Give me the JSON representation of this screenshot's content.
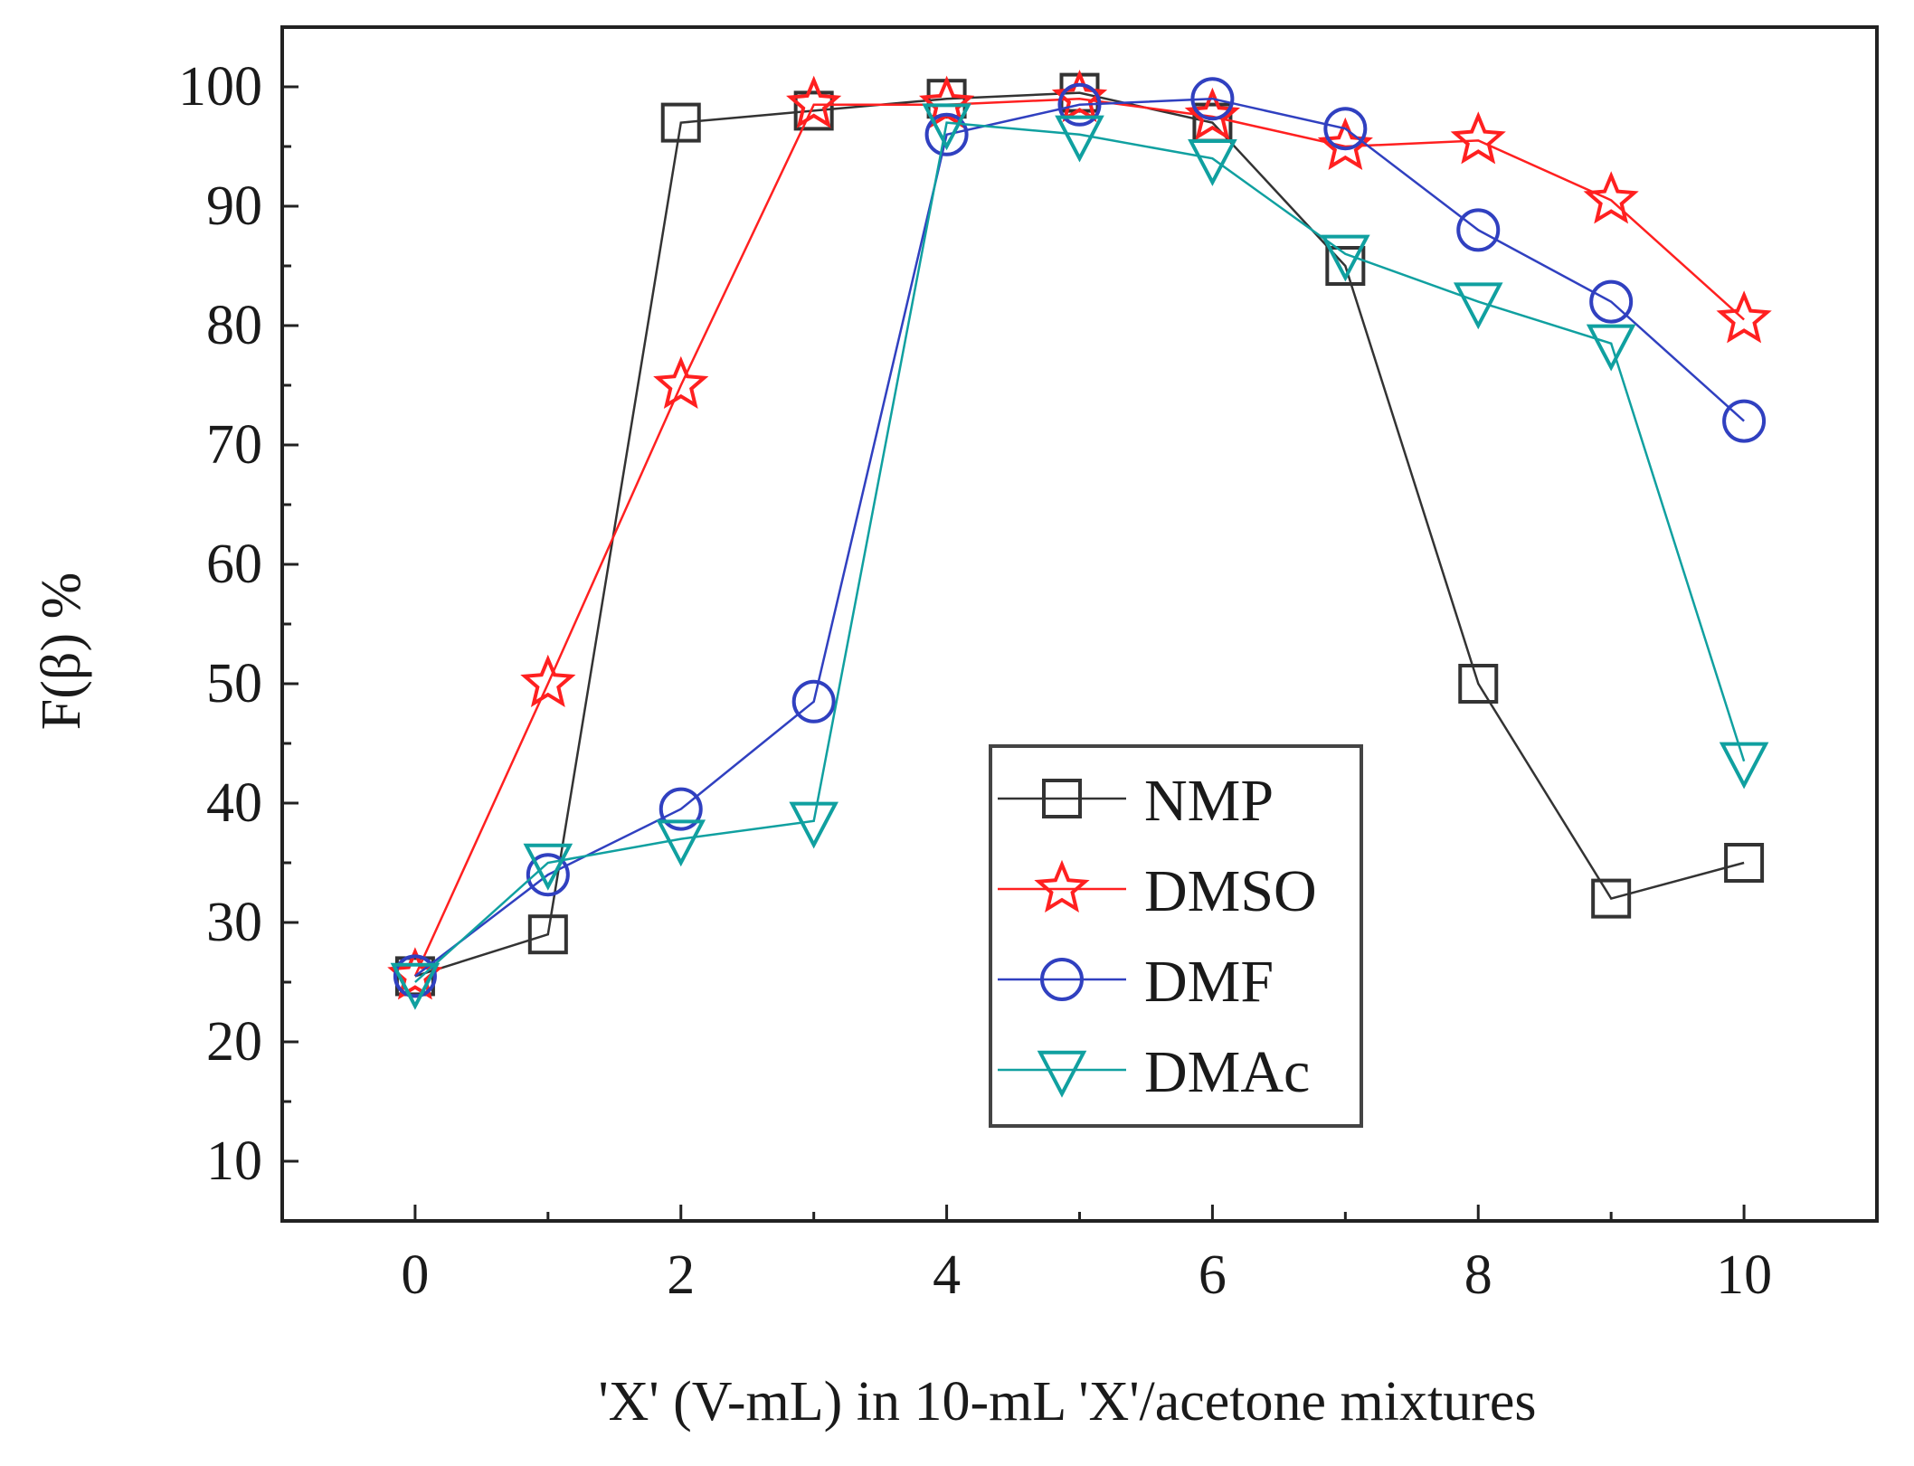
{
  "chart_data": {
    "type": "line",
    "title": "",
    "xlabel": "'X' (V-mL) in 10-mL 'X'/acetone mixtures",
    "ylabel": "F(β) %",
    "xlim": [
      -1,
      11
    ],
    "ylim": [
      5,
      105
    ],
    "x_ticks": [
      0,
      2,
      4,
      6,
      8,
      10
    ],
    "y_ticks": [
      10,
      20,
      30,
      40,
      50,
      60,
      70,
      80,
      90,
      100
    ],
    "x_tick_labels": [
      "0",
      "2",
      "4",
      "6",
      "8",
      "10"
    ],
    "y_tick_labels": [
      "10",
      "20",
      "30",
      "40",
      "50",
      "60",
      "70",
      "80",
      "90",
      "100"
    ],
    "grid": false,
    "legend_position": "center-right",
    "x": [
      0,
      1,
      2,
      3,
      4,
      5,
      6,
      7,
      8,
      9,
      10
    ],
    "series": [
      {
        "name": "NMP",
        "marker": "square",
        "color": "#333333",
        "values": [
          25.5,
          29,
          97,
          98,
          99,
          99.5,
          97,
          85,
          50,
          32,
          35
        ]
      },
      {
        "name": "DMSO",
        "marker": "star",
        "color": "#ff2020",
        "values": [
          25.5,
          50,
          75,
          98.5,
          98.5,
          99,
          97.5,
          95,
          95.5,
          90.5,
          80.5
        ]
      },
      {
        "name": "DMF",
        "marker": "circle",
        "color": "#3040c0",
        "values": [
          25.5,
          34,
          39.5,
          48.5,
          96,
          98.5,
          99,
          96.5,
          88,
          82,
          72
        ]
      },
      {
        "name": "DMAc",
        "marker": "triangle-down",
        "color": "#10a0a0",
        "values": [
          25,
          35,
          37,
          38.5,
          97,
          96,
          94,
          86,
          82,
          78.5,
          43.5
        ]
      }
    ]
  }
}
